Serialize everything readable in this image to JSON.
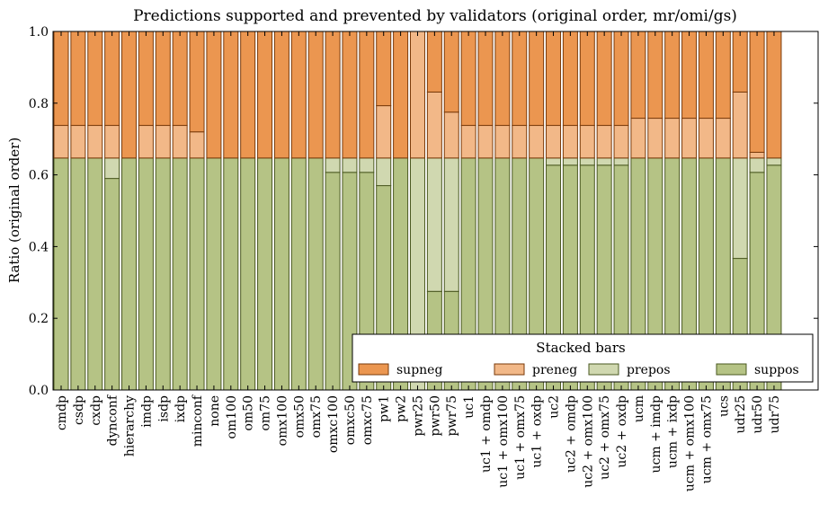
{
  "chart_data": {
    "type": "bar",
    "stacked": true,
    "title": "Predictions supported and prevented by validators (original order, mr/omi/gs)",
    "xlabel": "",
    "ylabel": "Ratio (original order)",
    "ylim": [
      0,
      1
    ],
    "yticks": [
      "0.0",
      "0.2",
      "0.4",
      "0.6",
      "0.8",
      "1.0"
    ],
    "legend": {
      "title": "Stacked bars",
      "placement": "bottom-right",
      "entries": [
        "supneg",
        "preneg",
        "prepos",
        "suppos"
      ]
    },
    "colors": {
      "supneg": "#EB9650",
      "preneg": "#F2B888",
      "prepos": "#D0D8B0",
      "suppos": "#B5C385"
    },
    "categories": [
      "cmdp",
      "csdp",
      "cxdp",
      "dynconf",
      "hierarchy",
      "imdp",
      "isdp",
      "ixdp",
      "minconf",
      "none",
      "om100",
      "om50",
      "om75",
      "omx100",
      "omx50",
      "omx75",
      "omxc100",
      "omxc50",
      "omxc75",
      "pw1",
      "pw2",
      "pwr25",
      "pwr50",
      "pwr75",
      "uc1",
      "uc1 + omdp",
      "uc1 + omx100",
      "uc1 + omx75",
      "uc1 + oxdp",
      "uc2",
      "uc2 + omdp",
      "uc2 + omx100",
      "uc2 + omx75",
      "uc2 + oxdp",
      "ucm",
      "ucm + imdp",
      "ucm + ixdp",
      "ucm + omx100",
      "ucm + omx75",
      "ucs",
      "udr25",
      "udr50",
      "udr75"
    ],
    "series": [
      {
        "name": "suppos",
        "values": [
          0.647,
          0.647,
          0.647,
          0.59,
          0.647,
          0.647,
          0.647,
          0.647,
          0.647,
          0.647,
          0.647,
          0.647,
          0.647,
          0.647,
          0.647,
          0.647,
          0.607,
          0.607,
          0.607,
          0.57,
          0.647,
          0,
          0.275,
          0.275,
          0.647,
          0.647,
          0.647,
          0.647,
          0.647,
          0.627,
          0.627,
          0.627,
          0.627,
          0.627,
          0.647,
          0.647,
          0.647,
          0.647,
          0.647,
          0.647,
          0.367,
          0.607,
          0.627
        ]
      },
      {
        "name": "prepos",
        "values": [
          0,
          0,
          0,
          0.057,
          0,
          0,
          0,
          0,
          0,
          0,
          0,
          0,
          0,
          0,
          0,
          0,
          0.04,
          0.04,
          0.04,
          0.077,
          0,
          0.647,
          0.372,
          0.372,
          0,
          0,
          0,
          0,
          0,
          0.02,
          0.02,
          0.02,
          0.02,
          0.02,
          0,
          0,
          0,
          0,
          0,
          0,
          0.28,
          0.04,
          0.02
        ]
      },
      {
        "name": "preneg",
        "values": [
          0.091,
          0.091,
          0.091,
          0.091,
          0,
          0.091,
          0.091,
          0.091,
          0.073,
          0,
          0,
          0,
          0,
          0,
          0,
          0,
          0,
          0,
          0,
          0.146,
          0,
          0.353,
          0.184,
          0.128,
          0.091,
          0.091,
          0.091,
          0.091,
          0.091,
          0.091,
          0.091,
          0.091,
          0.091,
          0.091,
          0.111,
          0.111,
          0.111,
          0.111,
          0.111,
          0.111,
          0.184,
          0.016,
          0
        ]
      },
      {
        "name": "supneg",
        "values": [
          0.262,
          0.262,
          0.262,
          0.262,
          0.353,
          0.262,
          0.262,
          0.262,
          0.28,
          0.353,
          0.353,
          0.353,
          0.353,
          0.353,
          0.353,
          0.353,
          0.353,
          0.353,
          0.353,
          0.207,
          0.353,
          0,
          0.169,
          0.225,
          0.262,
          0.262,
          0.262,
          0.262,
          0.262,
          0.262,
          0.262,
          0.262,
          0.262,
          0.262,
          0.242,
          0.242,
          0.242,
          0.242,
          0.242,
          0.242,
          0.169,
          0.337,
          0.353
        ]
      }
    ]
  }
}
